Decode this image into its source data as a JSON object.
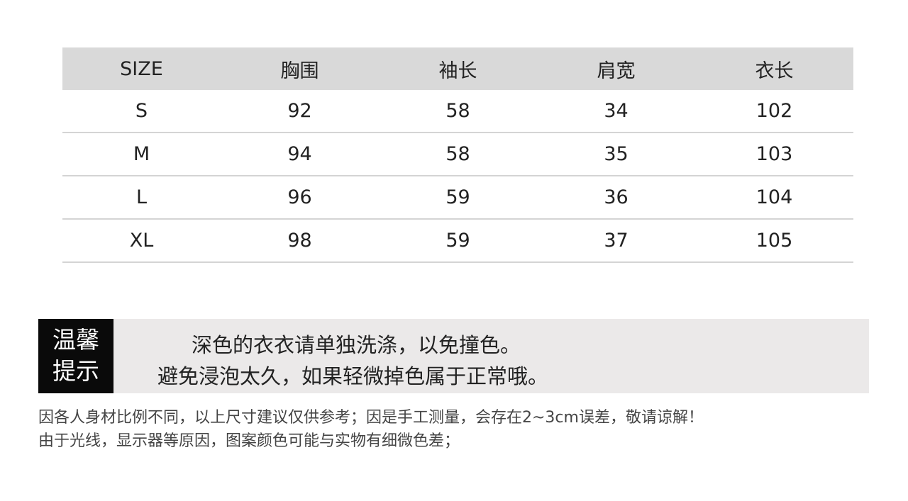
{
  "table": {
    "headers": [
      "SIZE",
      "胸围",
      "袖长",
      "肩宽",
      "衣长"
    ],
    "rows": [
      [
        "S",
        "92",
        "58",
        "34",
        "102"
      ],
      [
        "M",
        "94",
        "58",
        "35",
        "103"
      ],
      [
        "L",
        "96",
        "59",
        "36",
        "104"
      ],
      [
        "XL",
        "98",
        "59",
        "37",
        "105"
      ]
    ]
  },
  "notice": {
    "badge_line1": "温馨",
    "badge_line2": "提示",
    "line1": "深色的衣衣请单独洗涤，以免撞色。",
    "line2": "避免浸泡太久，如果轻微掉色属于正常哦。"
  },
  "footer": {
    "line1": "因各人身材比例不同，以上尺寸建议仅供参考；因是手工测量，会存在2~3cm误差，敬请谅解！",
    "line2": "由于光线，显示器等原因，图案颜色可能与实物有细微色差；"
  }
}
